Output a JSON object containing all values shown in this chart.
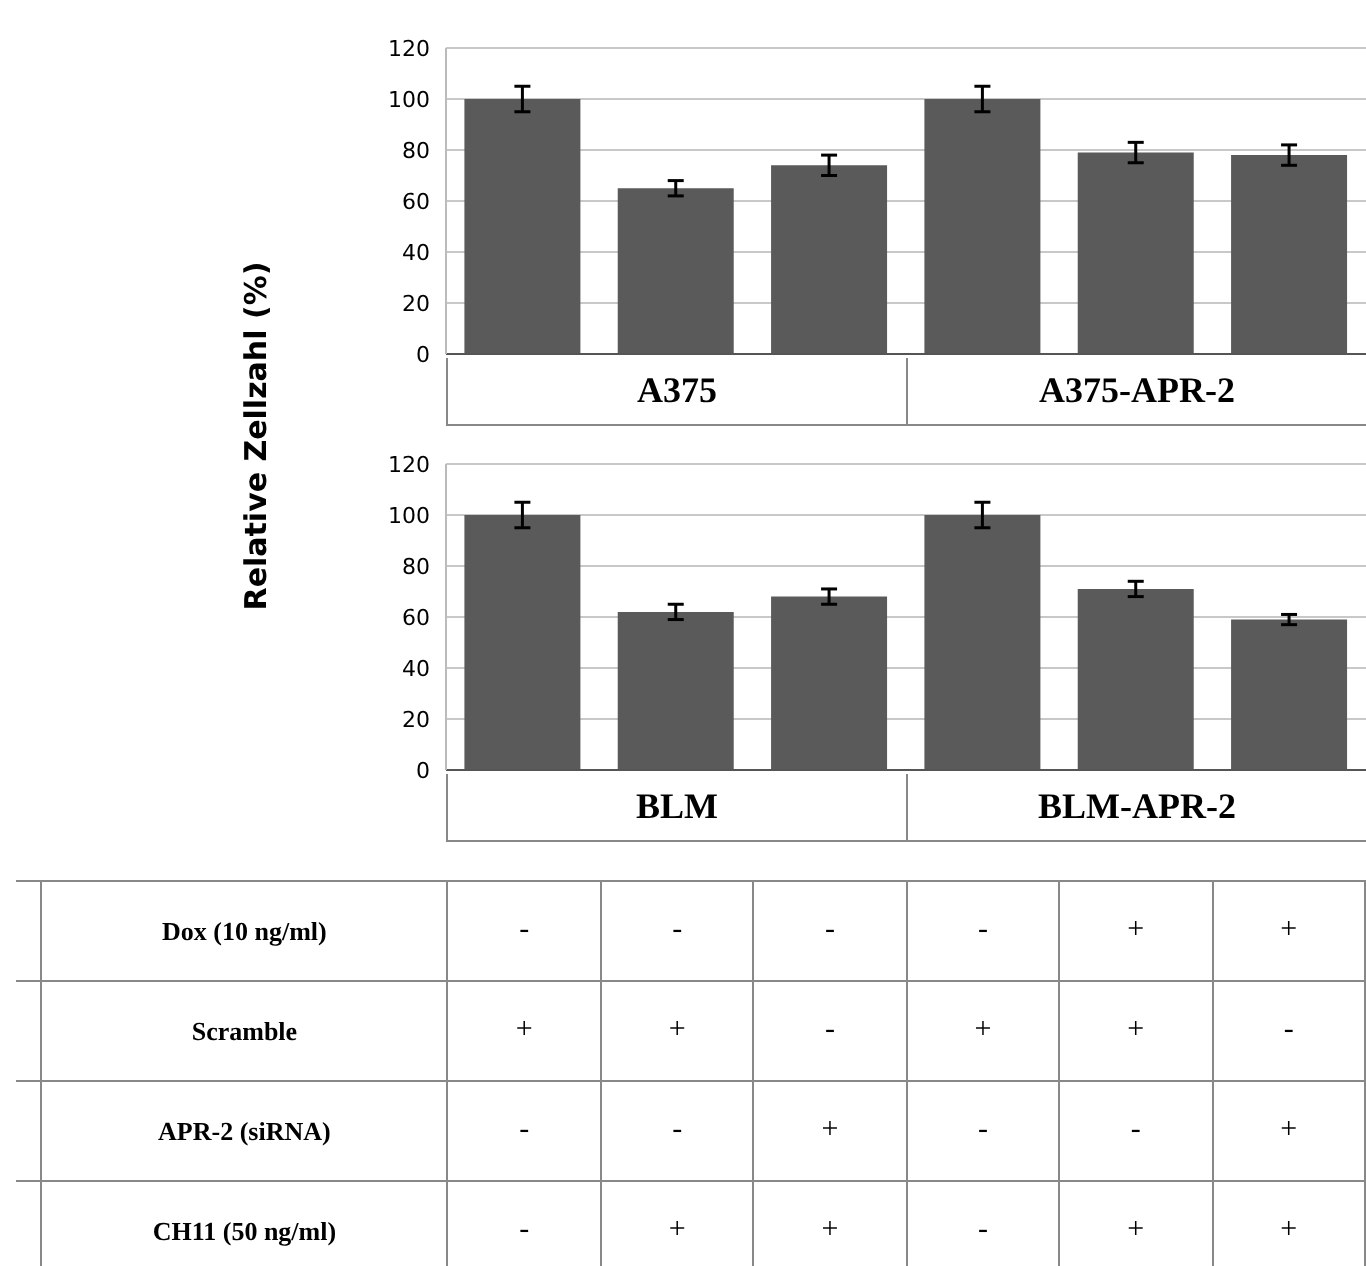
{
  "chart_data": [
    {
      "type": "bar",
      "ylabel": "Relative Zellzahl (%)",
      "categories": [
        null,
        null,
        null,
        null,
        null,
        null
      ],
      "values": [
        100,
        65,
        74,
        100,
        79,
        78
      ],
      "errors": [
        5,
        3,
        4,
        5,
        4,
        4
      ],
      "color": "#5a5a5a",
      "ylim": [
        0,
        120
      ],
      "yticks": [
        0,
        20,
        40,
        60,
        80,
        100,
        120
      ],
      "grid": "y",
      "annotations": [
        "A375",
        "A375-APR-2"
      ]
    },
    {
      "type": "bar",
      "categories": [
        null,
        null,
        null,
        null,
        null,
        null
      ],
      "values": [
        100,
        62,
        68,
        100,
        71,
        59
      ],
      "errors": [
        5,
        3,
        3,
        5,
        3,
        2
      ],
      "color": "#5a5a5a",
      "ylim": [
        0,
        120
      ],
      "yticks": [
        0,
        20,
        40,
        60,
        80,
        100,
        120
      ],
      "grid": "y",
      "annotations": [
        "BLM",
        "BLM-APR-2"
      ]
    },
    {
      "type": "other",
      "y_categories": [
        "Dox (10 ng/ml)",
        "Scramble",
        "APR-2 (siRNA)",
        "CH11 (50 ng/ml)"
      ],
      "cell_labels": [
        [
          "-",
          "-",
          "-",
          "-",
          "+",
          "+"
        ],
        [
          "+",
          "+",
          "-",
          "+",
          "+",
          "-"
        ],
        [
          "-",
          "-",
          "+",
          "-",
          "-",
          "+"
        ],
        [
          "-",
          "+",
          "+",
          "-",
          "+",
          "+"
        ]
      ]
    }
  ]
}
